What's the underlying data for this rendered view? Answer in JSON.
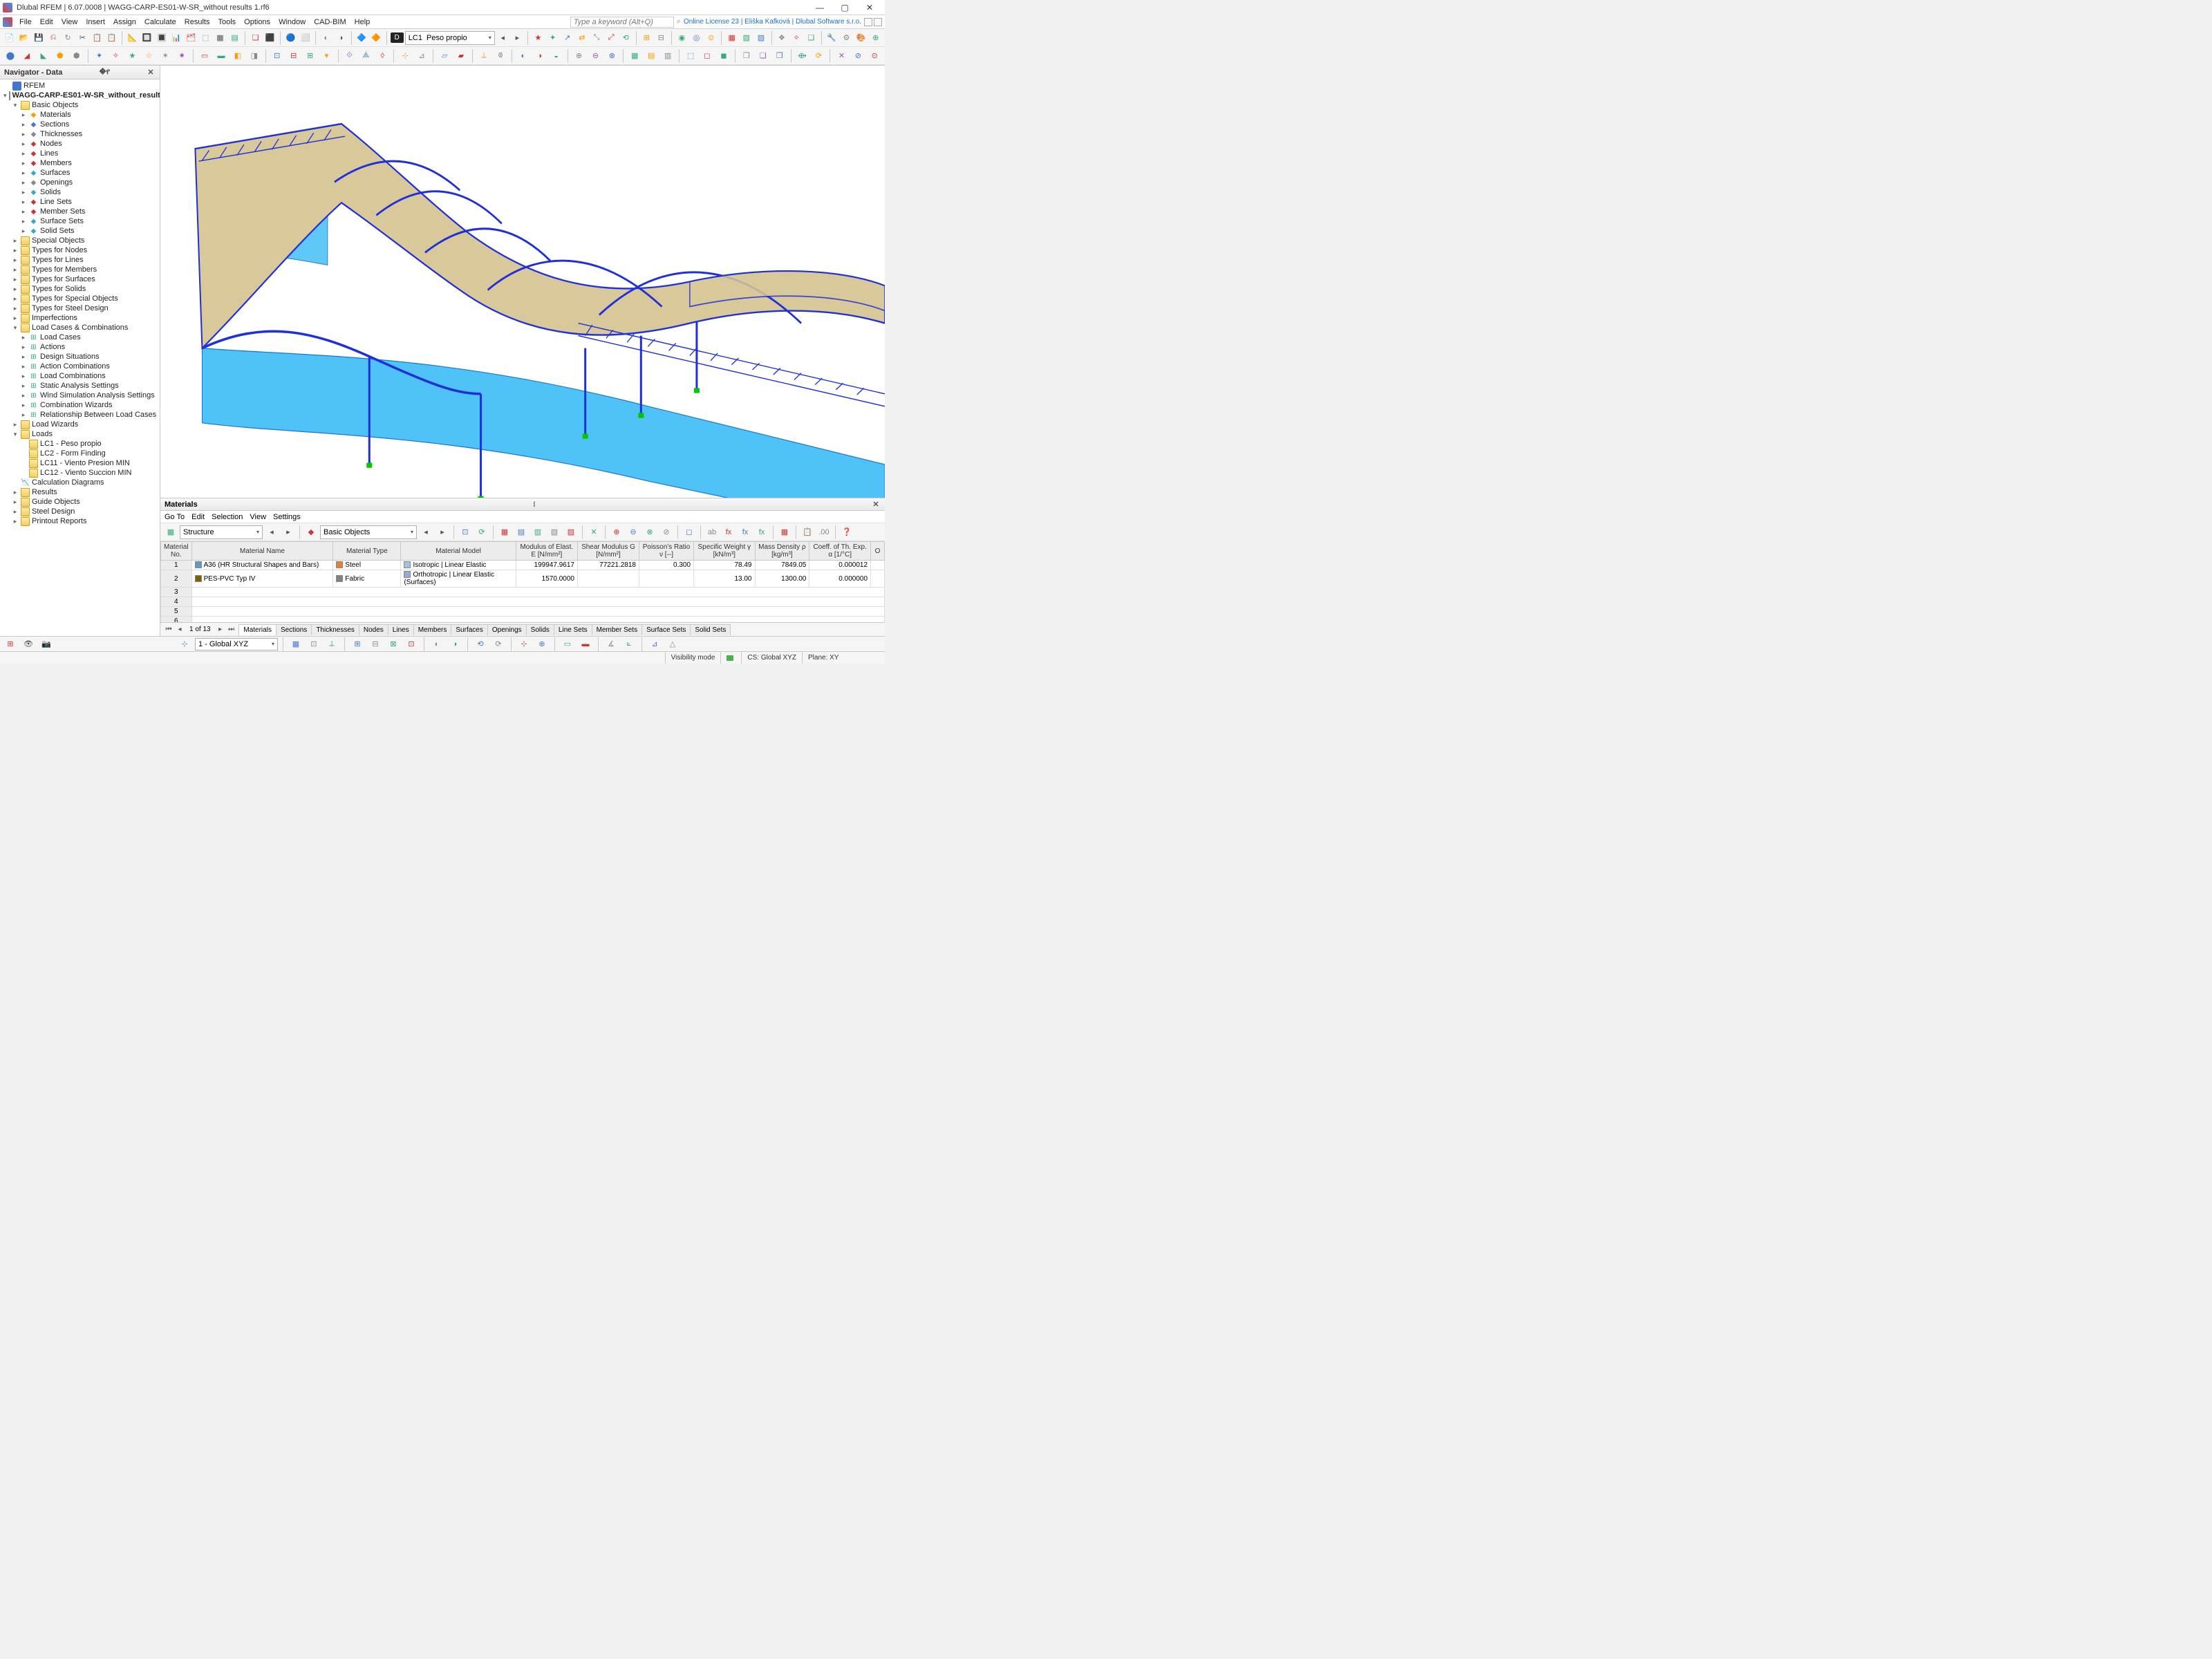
{
  "window": {
    "title": "Dlubal RFEM | 6.07.0008 | WAGG-CARP-ES01-W-SR_without results 1.rf6",
    "keyword_placeholder": "Type a keyword (Alt+Q)",
    "license": "Online License 23 | Eliška Kafková | Dlubal Software s.r.o."
  },
  "menu": [
    "File",
    "Edit",
    "View",
    "Insert",
    "Assign",
    "Calculate",
    "Results",
    "Tools",
    "Options",
    "Window",
    "CAD-BIM",
    "Help"
  ],
  "lc": {
    "badge": "D",
    "id": "LC1",
    "name": "Peso propio"
  },
  "navigator": {
    "title": "Navigator - Data",
    "root": "RFEM",
    "file": "WAGG-CARP-ES01-W-SR_without_results 1.rf6",
    "basic_objects_label": "Basic Objects",
    "basic_objects": [
      "Materials",
      "Sections",
      "Thicknesses",
      "Nodes",
      "Lines",
      "Members",
      "Surfaces",
      "Openings",
      "Solids",
      "Line Sets",
      "Member Sets",
      "Surface Sets",
      "Solid Sets"
    ],
    "folders1": [
      "Special Objects",
      "Types for Nodes",
      "Types for Lines",
      "Types for Members",
      "Types for Surfaces",
      "Types for Solids",
      "Types for Special Objects",
      "Types for Steel Design",
      "Imperfections"
    ],
    "lcac_label": "Load Cases & Combinations",
    "lcac": [
      "Load Cases",
      "Actions",
      "Design Situations",
      "Action Combinations",
      "Load Combinations",
      "Static Analysis Settings",
      "Wind Simulation Analysis Settings",
      "Combination Wizards",
      "Relationship Between Load Cases"
    ],
    "load_wizards": "Load Wizards",
    "loads_label": "Loads",
    "loads": [
      "LC1 - Peso propio",
      "LC2 - Form Finding",
      "LC11 - Viento Presion MIN",
      "LC12 - Viento Succion MIN"
    ],
    "folders2": [
      "Calculation Diagrams",
      "Results",
      "Guide Objects",
      "Steel Design",
      "Printout Reports"
    ]
  },
  "materials_panel": {
    "title": "Materials",
    "menu": [
      "Go To",
      "Edit",
      "Selection",
      "View",
      "Settings"
    ],
    "combo1": "Structure",
    "combo2": "Basic Objects",
    "headers": {
      "no": "Material\nNo.",
      "name": "Material Name",
      "type": "Material\nType",
      "model": "Material Model",
      "e": "Modulus of Elast.\nE [N/mm²]",
      "g": "Shear Modulus\nG [N/mm²]",
      "v": "Poisson's Ratio\nν [--]",
      "w": "Specific Weight\nγ [kN/m³]",
      "d": "Mass Density\nρ [kg/m³]",
      "a": "Coeff. of Th. Exp.\nα [1/°C]",
      "o": "O"
    },
    "rows": [
      {
        "no": "1",
        "color": "#5b9bd5",
        "name": "A36 (HR Structural Shapes and Bars)",
        "tcolor": "#ed7d31",
        "type": "Steel",
        "mcolor": "#9dc3e6",
        "model": "Isotropic | Linear Elastic",
        "e": "199947.9617",
        "g": "77221.2818",
        "v": "0.300",
        "w": "78.49",
        "d": "7849.05",
        "a": "0.000012"
      },
      {
        "no": "2",
        "color": "#7f6000",
        "name": "PES-PVC Typ IV",
        "tcolor": "#808080",
        "type": "Fabric",
        "mcolor": "#8faadc",
        "model": "Orthotropic | Linear Elastic (Surfaces)",
        "e": "1570.0000",
        "g": "",
        "v": "",
        "w": "13.00",
        "d": "1300.00",
        "a": "0.000000"
      }
    ],
    "empty_rows": [
      "3",
      "4",
      "5",
      "6"
    ],
    "page": "1 of 13",
    "tabs": [
      "Materials",
      "Sections",
      "Thicknesses",
      "Nodes",
      "Lines",
      "Members",
      "Surfaces",
      "Openings",
      "Solids",
      "Line Sets",
      "Member Sets",
      "Surface Sets",
      "Solid Sets"
    ]
  },
  "status": {
    "combo": "1 - Global XYZ",
    "vis": "Visibility mode",
    "cs": "CS: Global XYZ",
    "plane": "Plane: XY"
  },
  "viewport": {
    "steel_color": "#2030d8",
    "fabric_color": "#d8c89a",
    "wall_color": "#4fc3f7",
    "support_color": "#00c800",
    "bg": "#ffffff"
  }
}
